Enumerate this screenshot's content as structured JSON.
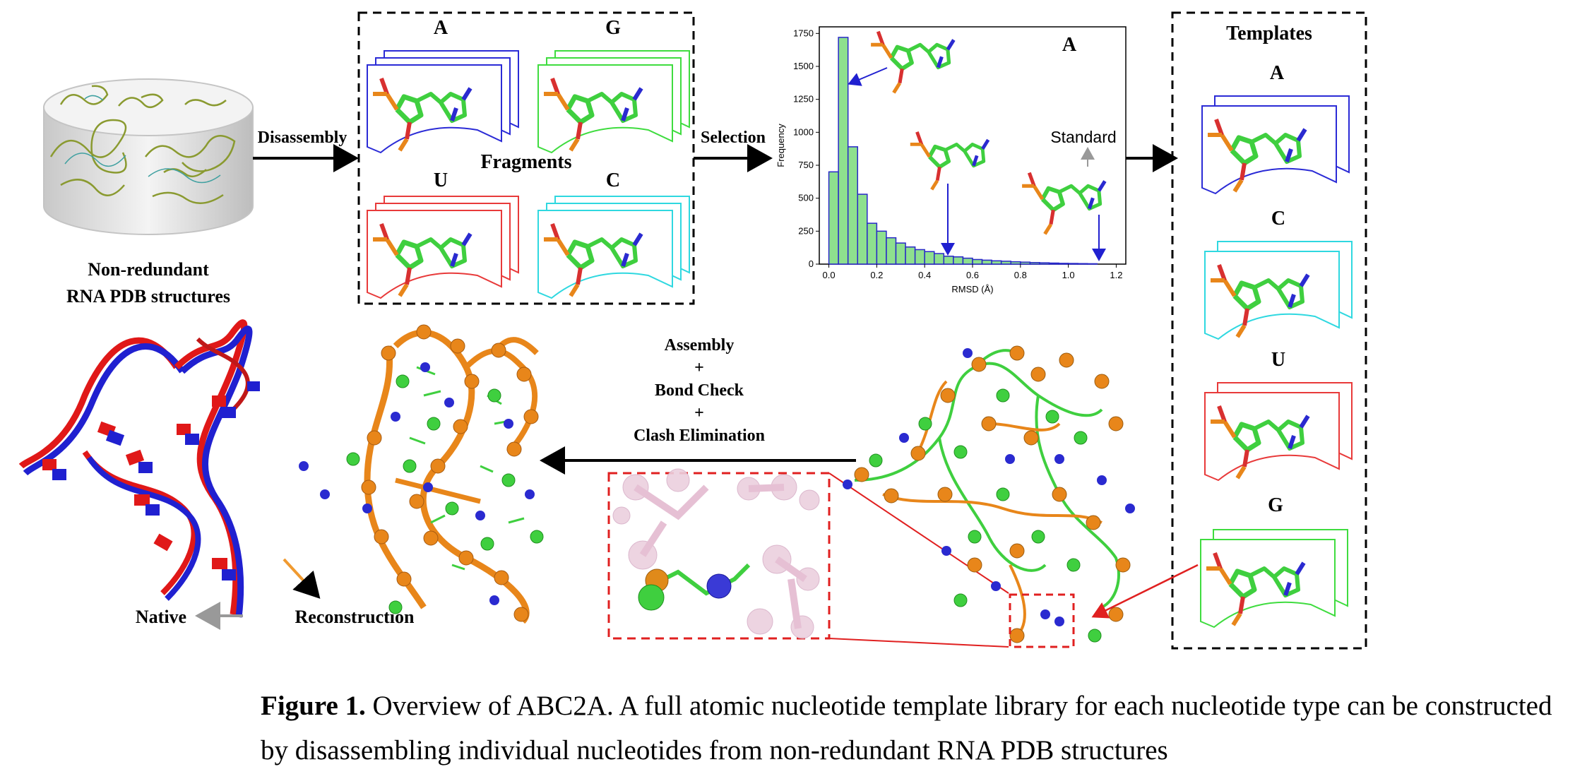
{
  "database": {
    "label_line1": "Non-redundant",
    "label_line2": "RNA PDB structures"
  },
  "arrows": {
    "disassembly": "Disassembly",
    "selection": "Selection"
  },
  "fragments": {
    "title": "Fragments",
    "nucleotides": [
      "A",
      "G",
      "U",
      "C"
    ]
  },
  "templates": {
    "title": "Templates",
    "nucleotides": [
      "A",
      "C",
      "U",
      "G"
    ]
  },
  "assembly": {
    "line1": "Assembly",
    "plus1": "+",
    "line2": "Bond Check",
    "plus2": "+",
    "line3": "Clash Elimination"
  },
  "structure_labels": {
    "native": "Native",
    "reconstruction": "Reconstruction"
  },
  "colors": {
    "A": "#2b2bd6",
    "G": "#3fdc3f",
    "U": "#e83a3a",
    "C": "#2fd8e0",
    "native": "#e01818",
    "reconstruction": "#2020d0",
    "orange": "#e8861a",
    "green": "#3fcf3f",
    "blue": "#2a2ad0",
    "pink": "#e6c6d8"
  },
  "chart_data": {
    "type": "bar",
    "title": "A",
    "annotation": "Standard",
    "xlabel": "RMSD (Å)",
    "ylabel": "Frequency",
    "xlim": [
      -0.04,
      1.24
    ],
    "ylim": [
      0,
      1800
    ],
    "xticks": [
      "0.0",
      "0.2",
      "0.4",
      "0.6",
      "0.8",
      "1.0",
      "1.2"
    ],
    "xtick_values": [
      0.0,
      0.2,
      0.4,
      0.6,
      0.8,
      1.0,
      1.2
    ],
    "yticks": [
      "0",
      "250",
      "500",
      "750",
      "1000",
      "1250",
      "1500",
      "1750"
    ],
    "ytick_values": [
      0,
      250,
      500,
      750,
      1000,
      1250,
      1500,
      1750
    ],
    "bin_width": 0.04,
    "bin_starts": [
      0.0,
      0.04,
      0.08,
      0.12,
      0.16,
      0.2,
      0.24,
      0.28,
      0.32,
      0.36,
      0.4,
      0.44,
      0.48,
      0.52,
      0.56,
      0.6,
      0.64,
      0.68,
      0.72,
      0.76,
      0.8,
      0.84,
      0.88,
      0.92,
      0.96,
      1.0,
      1.04,
      1.08
    ],
    "values": [
      700,
      1720,
      890,
      530,
      310,
      250,
      200,
      160,
      130,
      110,
      95,
      80,
      60,
      55,
      45,
      35,
      30,
      25,
      22,
      18,
      15,
      12,
      10,
      8,
      6,
      5,
      4,
      3
    ],
    "grid": false,
    "bar_color": "#8ee08e",
    "edge_color": "#2828c8"
  },
  "caption": {
    "label": "Figure 1.",
    "text": " Overview of ABC2A. A full atomic nucleotide template library for each nucleotide type can be constructed by disassembling individual nucleotides from non-redundant RNA PDB structures"
  }
}
